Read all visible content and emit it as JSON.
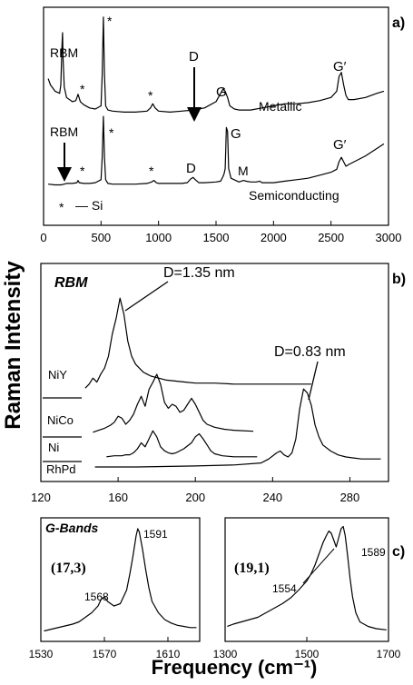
{
  "ylabel": "Raman Intensity",
  "xlabel": "Frequency (cm⁻¹)",
  "chart_data": [
    {
      "id": "a",
      "type": "line",
      "panel_label": "a)",
      "xlim": [
        0,
        3000
      ],
      "xticks": [
        "0",
        "500",
        "1000",
        "1500",
        "2000",
        "2500",
        "3000"
      ],
      "series": [
        {
          "name": "Metallic",
          "x": [
            40,
            60,
            100,
            140,
            150,
            160,
            165,
            170,
            180,
            200,
            250,
            280,
            300,
            320,
            350,
            400,
            450,
            500,
            510,
            520,
            530,
            540,
            560,
            600,
            700,
            800,
            900,
            930,
            950,
            970,
            1000,
            1100,
            1200,
            1300,
            1400,
            1500,
            1540,
            1560,
            1580,
            1600,
            1620,
            1660,
            1700,
            1800,
            1900,
            2000,
            2100,
            2200,
            2300,
            2400,
            2500,
            2550,
            2570,
            2590,
            2610,
            2630,
            2650,
            2700,
            2800,
            2900,
            2960
          ],
          "values": [
            0.36,
            0.3,
            0.24,
            0.22,
            0.3,
            0.68,
            0.8,
            0.55,
            0.28,
            0.18,
            0.14,
            0.15,
            0.21,
            0.14,
            0.11,
            0.08,
            0.07,
            0.1,
            0.4,
            0.95,
            0.4,
            0.1,
            0.06,
            0.05,
            0.04,
            0.04,
            0.05,
            0.08,
            0.12,
            0.08,
            0.05,
            0.04,
            0.05,
            0.06,
            0.08,
            0.14,
            0.22,
            0.26,
            0.24,
            0.18,
            0.1,
            0.07,
            0.06,
            0.06,
            0.08,
            0.1,
            0.12,
            0.12,
            0.13,
            0.15,
            0.18,
            0.24,
            0.38,
            0.42,
            0.3,
            0.2,
            0.16,
            0.16,
            0.18,
            0.22,
            0.24
          ]
        },
        {
          "name": "Semiconducting",
          "x": [
            40,
            100,
            150,
            180,
            200,
            250,
            290,
            300,
            310,
            350,
            400,
            450,
            500,
            510,
            520,
            530,
            540,
            560,
            600,
            700,
            800,
            900,
            940,
            960,
            980,
            1000,
            1100,
            1200,
            1250,
            1280,
            1300,
            1320,
            1350,
            1400,
            1500,
            1540,
            1560,
            1570,
            1580,
            1590,
            1600,
            1610,
            1630,
            1700,
            1740,
            1760,
            1800,
            1850,
            1880,
            1900,
            2000,
            2100,
            2200,
            2300,
            2400,
            2500,
            2550,
            2570,
            2590,
            2610,
            2630,
            2650,
            2700,
            2800,
            2900,
            2960
          ],
          "values": [
            0.04,
            0.03,
            0.03,
            0.04,
            0.05,
            0.05,
            0.06,
            0.09,
            0.06,
            0.05,
            0.05,
            0.06,
            0.1,
            0.4,
            0.95,
            0.4,
            0.1,
            0.05,
            0.04,
            0.04,
            0.04,
            0.05,
            0.07,
            0.09,
            0.06,
            0.05,
            0.05,
            0.05,
            0.06,
            0.11,
            0.13,
            0.1,
            0.06,
            0.06,
            0.07,
            0.08,
            0.14,
            0.18,
            0.25,
            0.8,
            0.75,
            0.25,
            0.12,
            0.07,
            0.09,
            0.08,
            0.07,
            0.07,
            0.08,
            0.06,
            0.06,
            0.08,
            0.1,
            0.12,
            0.16,
            0.2,
            0.24,
            0.34,
            0.4,
            0.34,
            0.28,
            0.3,
            0.34,
            0.42,
            0.52,
            0.58
          ]
        }
      ],
      "annotations": [
        "RBM",
        "*",
        "D",
        "G",
        "G′",
        "Metallic",
        "RBM",
        "*",
        "G",
        "D",
        "M",
        "G′",
        "Semiconducting",
        "*",
        "— Si"
      ]
    },
    {
      "id": "b",
      "type": "line",
      "panel_label": "b)",
      "title": "RBM",
      "xlim": [
        120,
        300
      ],
      "xticks": [
        "120",
        "160",
        "200",
        "240",
        "280"
      ],
      "series": [
        {
          "name": "NiY",
          "x": [
            143,
            145,
            147,
            149,
            151,
            153,
            155,
            157,
            159,
            161,
            163,
            165,
            167,
            169,
            171,
            173,
            175,
            177,
            179,
            181,
            183,
            185,
            190,
            195,
            200,
            210,
            220,
            240,
            260
          ],
          "values": [
            0.08,
            0.12,
            0.18,
            0.14,
            0.22,
            0.28,
            0.4,
            0.62,
            0.78,
            0.98,
            0.82,
            0.55,
            0.4,
            0.32,
            0.28,
            0.24,
            0.22,
            0.2,
            0.19,
            0.18,
            0.17,
            0.16,
            0.15,
            0.14,
            0.13,
            0.13,
            0.12,
            0.12,
            0.12
          ]
        },
        {
          "name": "NiCo",
          "x": [
            147,
            150,
            153,
            156,
            158,
            160,
            162,
            164,
            166,
            168,
            170,
            172,
            174,
            176,
            178,
            180,
            182,
            184,
            186,
            188,
            190,
            192,
            194,
            196,
            198,
            200,
            202,
            204,
            206,
            210,
            215,
            220,
            230
          ],
          "values": [
            0.02,
            0.04,
            0.06,
            0.09,
            0.12,
            0.18,
            0.16,
            0.1,
            0.14,
            0.2,
            0.3,
            0.38,
            0.28,
            0.45,
            0.52,
            0.6,
            0.5,
            0.32,
            0.26,
            0.3,
            0.28,
            0.22,
            0.24,
            0.3,
            0.36,
            0.3,
            0.22,
            0.14,
            0.1,
            0.07,
            0.05,
            0.04,
            0.03
          ]
        },
        {
          "name": "Ni",
          "x": [
            154,
            158,
            162,
            164,
            166,
            168,
            170,
            172,
            174,
            176,
            178,
            180,
            182,
            184,
            186,
            188,
            190,
            194,
            198,
            200,
            202,
            204,
            206,
            208,
            210,
            214,
            220,
            226,
            232
          ],
          "values": [
            0.02,
            0.03,
            0.03,
            0.04,
            0.04,
            0.06,
            0.1,
            0.16,
            0.12,
            0.2,
            0.28,
            0.22,
            0.12,
            0.08,
            0.06,
            0.05,
            0.06,
            0.1,
            0.16,
            0.22,
            0.25,
            0.2,
            0.14,
            0.08,
            0.05,
            0.03,
            0.02,
            0.02,
            0.02
          ]
        },
        {
          "name": "RhPd",
          "x": [
            148,
            170,
            200,
            220,
            234,
            238,
            242,
            244,
            246,
            248,
            250,
            252,
            254,
            256,
            258,
            260,
            262,
            264,
            266,
            270,
            274,
            278,
            282,
            286,
            290,
            296
          ],
          "values": [
            0.0,
            0.0,
            0.01,
            0.02,
            0.04,
            0.08,
            0.14,
            0.16,
            0.12,
            0.1,
            0.14,
            0.28,
            0.58,
            0.78,
            0.74,
            0.62,
            0.42,
            0.3,
            0.22,
            0.16,
            0.12,
            0.1,
            0.09,
            0.08,
            0.08,
            0.08
          ]
        }
      ],
      "annotations": [
        "D=1.35 nm",
        "D=0.83 nm"
      ]
    },
    {
      "id": "c1",
      "type": "line",
      "title": "G-Bands",
      "subtitle": "(17,3)",
      "xlim": [
        1530,
        1630
      ],
      "xticks": [
        "1530",
        "1570",
        "1610"
      ],
      "series": [
        {
          "x": [
            1532,
            1538,
            1544,
            1550,
            1554,
            1558,
            1562,
            1566,
            1568,
            1570,
            1572,
            1576,
            1580,
            1584,
            1586,
            1588,
            1590,
            1591,
            1592,
            1594,
            1596,
            1598,
            1600,
            1604,
            1608,
            1612,
            1616,
            1620,
            1624,
            1628
          ],
          "values": [
            0.06,
            0.08,
            0.1,
            0.12,
            0.14,
            0.18,
            0.22,
            0.28,
            0.34,
            0.36,
            0.32,
            0.28,
            0.3,
            0.42,
            0.56,
            0.72,
            0.9,
            0.96,
            0.93,
            0.78,
            0.6,
            0.44,
            0.32,
            0.22,
            0.16,
            0.13,
            0.11,
            0.1,
            0.09,
            0.09
          ]
        }
      ],
      "annotations": [
        "1568",
        "1591"
      ]
    },
    {
      "id": "c2",
      "type": "line",
      "panel_label": "c)",
      "subtitle": "(19,1)",
      "xlim": [
        1300,
        1700
      ],
      "xticks": [
        "1300",
        "1500",
        "1700"
      ],
      "series": [
        {
          "x": [
            1305,
            1320,
            1340,
            1360,
            1380,
            1400,
            1420,
            1440,
            1460,
            1480,
            1500,
            1510,
            1520,
            1530,
            1540,
            1548,
            1554,
            1560,
            1566,
            1572,
            1578,
            1584,
            1589,
            1594,
            1600,
            1606,
            1612,
            1620,
            1630,
            1650,
            1670,
            1695
          ],
          "values": [
            0.1,
            0.12,
            0.14,
            0.16,
            0.18,
            0.22,
            0.26,
            0.3,
            0.35,
            0.42,
            0.5,
            0.56,
            0.64,
            0.74,
            0.84,
            0.9,
            0.94,
            0.92,
            0.86,
            0.8,
            0.88,
            0.96,
            0.98,
            0.9,
            0.72,
            0.52,
            0.36,
            0.22,
            0.14,
            0.1,
            0.08,
            0.07
          ]
        }
      ],
      "annotations": [
        "1589",
        "1554"
      ]
    }
  ]
}
